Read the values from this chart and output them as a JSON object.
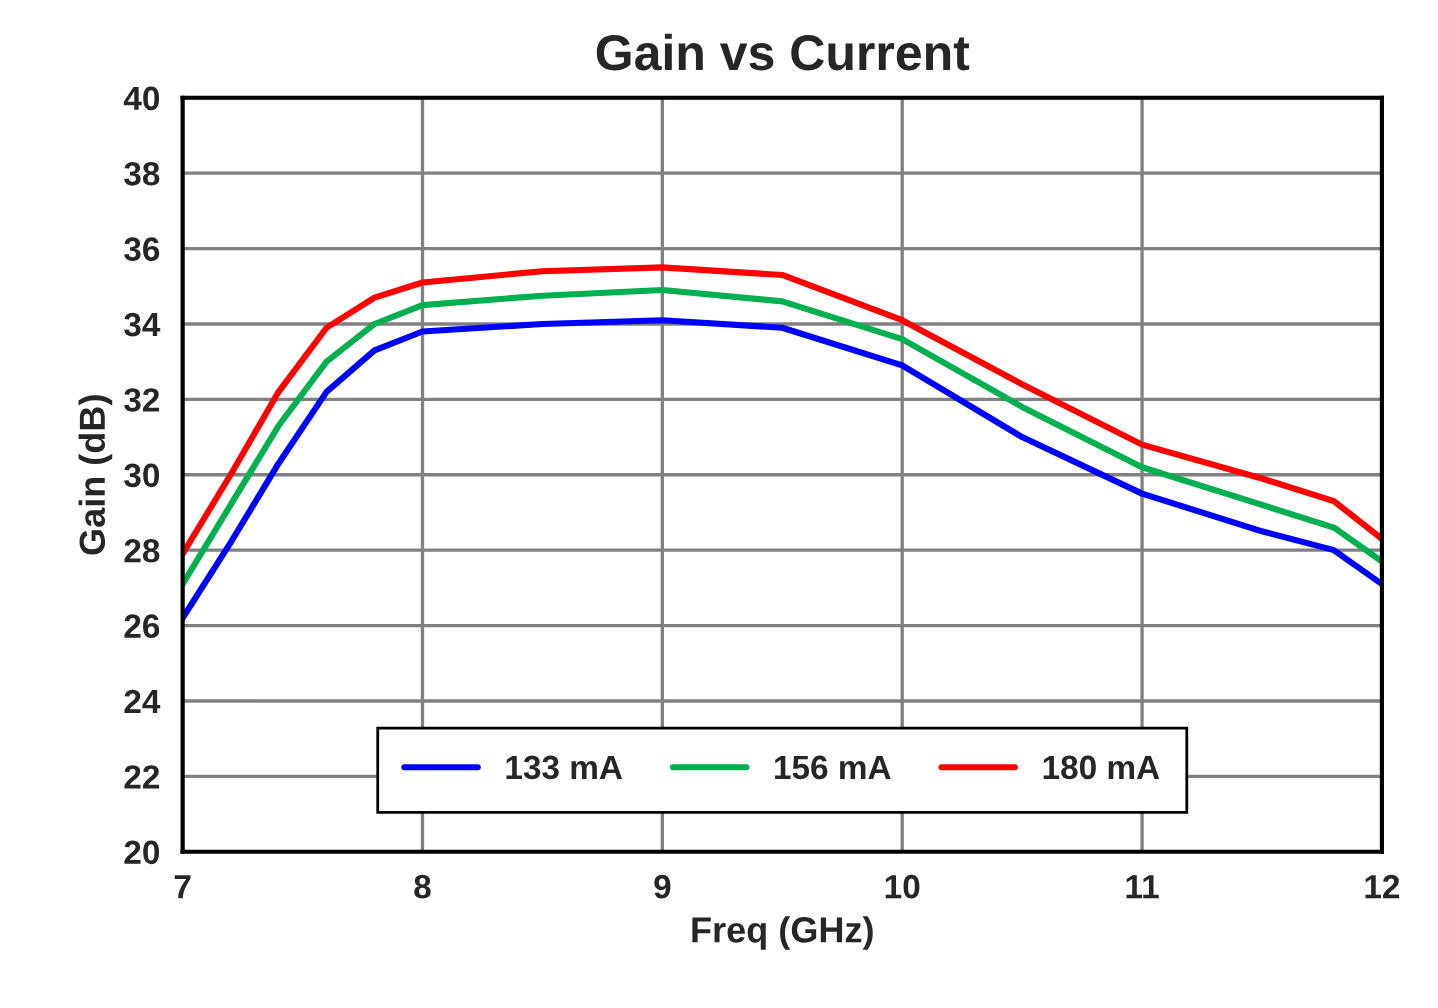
{
  "chart_data": {
    "type": "line",
    "title": "Gain vs Current",
    "xlabel": "Freq (GHz)",
    "ylabel": "Gain (dB)",
    "x": [
      7,
      7.2,
      7.4,
      7.6,
      7.8,
      8,
      8.5,
      9,
      9.5,
      10,
      10.5,
      11,
      11.5,
      11.8,
      12
    ],
    "series": [
      {
        "name": "133 mA",
        "color": "#0000ff",
        "values": [
          26.2,
          28.2,
          30.3,
          32.2,
          33.3,
          33.8,
          34.0,
          34.1,
          33.9,
          32.9,
          31.0,
          29.5,
          28.5,
          28.0,
          27.1
        ]
      },
      {
        "name": "156 mA",
        "color": "#00b050",
        "values": [
          27.1,
          29.2,
          31.3,
          33.0,
          34.0,
          34.5,
          34.75,
          34.9,
          34.6,
          33.6,
          31.8,
          30.2,
          29.2,
          28.6,
          27.7
        ]
      },
      {
        "name": "180 mA",
        "color": "#ff0000",
        "values": [
          27.9,
          30.0,
          32.2,
          33.9,
          34.7,
          35.1,
          35.4,
          35.5,
          35.3,
          34.1,
          32.4,
          30.8,
          29.9,
          29.3,
          28.3
        ]
      }
    ],
    "xlim": [
      7,
      12
    ],
    "xticks": [
      7,
      8,
      9,
      10,
      11,
      12
    ],
    "ylim": [
      20,
      40
    ],
    "yticks": [
      20,
      22,
      24,
      26,
      28,
      30,
      32,
      34,
      36,
      38,
      40
    ],
    "grid": true,
    "legend": "bottom",
    "marker": "none",
    "line_style": "solid"
  }
}
